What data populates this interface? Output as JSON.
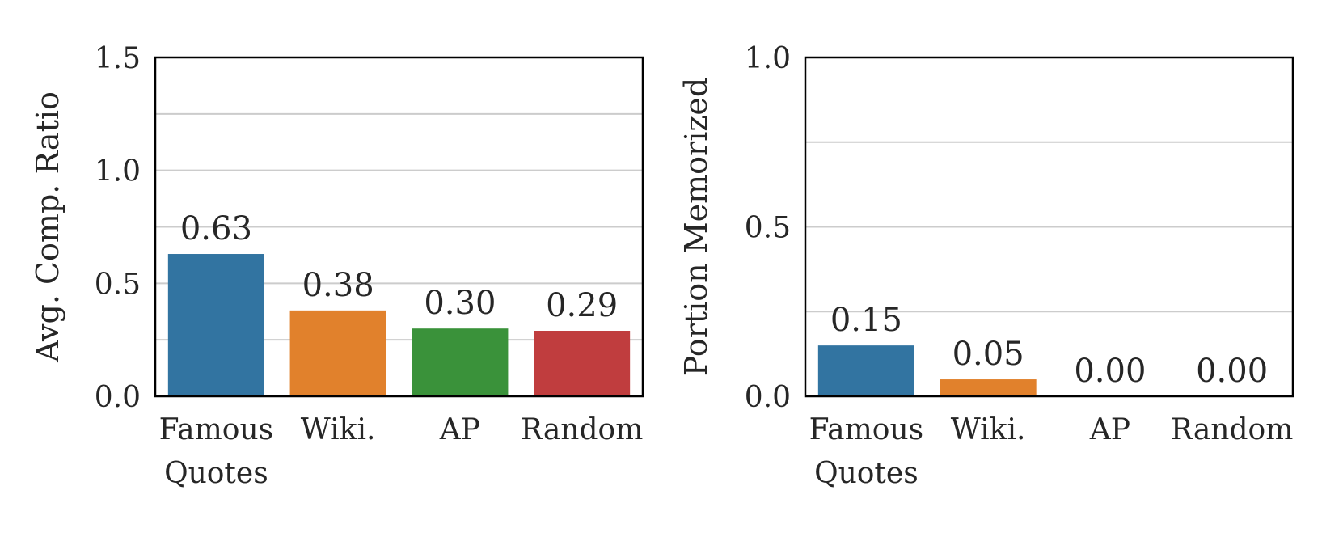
{
  "chart_data": [
    {
      "type": "bar",
      "categories": [
        [
          "Famous",
          "Quotes"
        ],
        [
          "Wiki."
        ],
        [
          "AP"
        ],
        [
          "Random"
        ]
      ],
      "values": [
        0.63,
        0.38,
        0.3,
        0.29
      ],
      "value_labels": [
        "0.63",
        "0.38",
        "0.30",
        "0.29"
      ],
      "colors": [
        "#3274a1",
        "#e1812c",
        "#3a923a",
        "#c03d3e"
      ],
      "xlabel": "",
      "ylabel": "Avg. Comp. Ratio",
      "ylim": [
        0,
        1.5
      ],
      "yticks": [
        0.0,
        0.5,
        1.0,
        1.5
      ],
      "ytick_labels": [
        "0.0",
        "0.5",
        "1.0",
        "1.5"
      ],
      "gridlines": [
        0.25,
        0.5,
        0.75,
        1.0,
        1.25
      ],
      "grid": true
    },
    {
      "type": "bar",
      "categories": [
        [
          "Famous",
          "Quotes"
        ],
        [
          "Wiki."
        ],
        [
          "AP"
        ],
        [
          "Random"
        ]
      ],
      "values": [
        0.15,
        0.05,
        0.0,
        0.0
      ],
      "value_labels": [
        "0.15",
        "0.05",
        "0.00",
        "0.00"
      ],
      "colors": [
        "#3274a1",
        "#e1812c",
        "#3a923a",
        "#c03d3e"
      ],
      "xlabel": "",
      "ylabel": "Portion Memorized",
      "ylim": [
        0,
        1.0
      ],
      "yticks": [
        0.0,
        0.5,
        1.0
      ],
      "ytick_labels": [
        "0.0",
        "0.5",
        "1.0"
      ],
      "gridlines": [
        0.25,
        0.5,
        0.75
      ],
      "grid": true
    }
  ]
}
